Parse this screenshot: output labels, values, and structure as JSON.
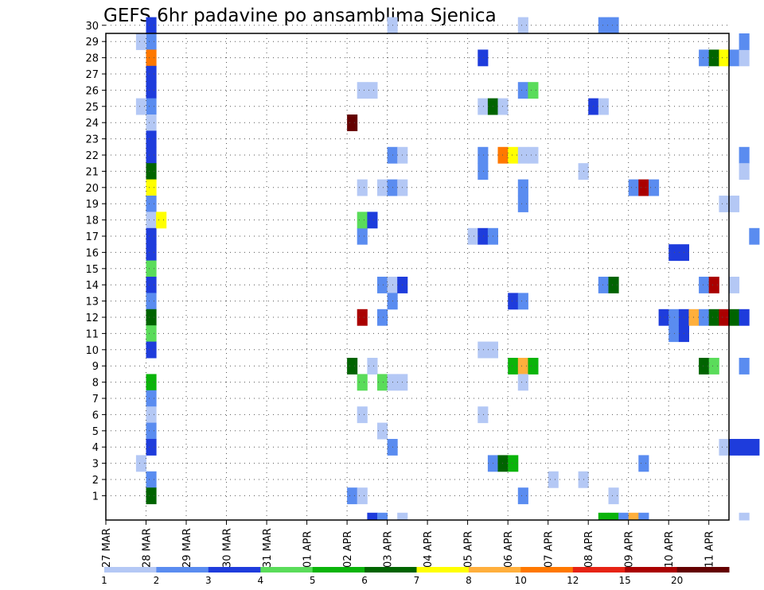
{
  "chart_data": {
    "type": "heatmap",
    "title": "GEFS 6hr padavine po ansamblima Sjenica",
    "xlabel": "",
    "ylabel": "",
    "x_ticks": [
      "27 MAR",
      "28 MAR",
      "29 MAR",
      "30 MAR",
      "31 MAR",
      "01 APR",
      "02 APR",
      "03 APR",
      "04 APR",
      "05 APR",
      "06 APR",
      "07 APR",
      "08 APR",
      "09 APR",
      "10 APR",
      "11 APR"
    ],
    "y_ticks": [
      "1",
      "2",
      "3",
      "4",
      "5",
      "6",
      "7",
      "8",
      "9",
      "10",
      "11",
      "12",
      "13",
      "14",
      "15",
      "16",
      "17",
      "18",
      "19",
      "20",
      "21",
      "22",
      "23",
      "24",
      "25",
      "26",
      "27",
      "28",
      "29",
      "30"
    ],
    "time_steps_per_day": 4,
    "grid": true,
    "legend": {
      "placement": "bottom",
      "thresholds": [
        "1",
        "2",
        "3",
        "4",
        "5",
        "6",
        "7",
        "8",
        "10",
        "12",
        "15",
        "20"
      ],
      "colors": [
        "#b4c8f5",
        "#5a8cf0",
        "#1e3cdc",
        "#5adc5a",
        "#0ab40a",
        "#006400",
        "#ffff00",
        "#ffaf3c",
        "#ff7800",
        "#e62314",
        "#aa0000",
        "#640000"
      ]
    },
    "cells": [
      [
        28.0,
        30,
        3
      ],
      [
        28.0,
        29,
        2
      ],
      [
        28.0,
        28,
        9
      ],
      [
        28.0,
        27,
        3
      ],
      [
        28.0,
        26,
        3
      ],
      [
        28.0,
        25,
        2
      ],
      [
        28.0,
        24,
        1
      ],
      [
        28.0,
        23,
        3
      ],
      [
        28.0,
        22,
        3
      ],
      [
        28.0,
        21,
        6
      ],
      [
        28.0,
        20,
        7
      ],
      [
        28.0,
        19,
        2
      ],
      [
        28.0,
        18,
        1
      ],
      [
        28.0,
        17,
        3
      ],
      [
        28.0,
        16,
        3
      ],
      [
        28.0,
        15,
        4
      ],
      [
        28.0,
        14,
        3
      ],
      [
        28.0,
        13,
        2
      ],
      [
        28.0,
        12,
        6
      ],
      [
        28.0,
        11,
        4
      ],
      [
        28.0,
        10,
        3
      ],
      [
        28.0,
        8,
        5
      ],
      [
        28.0,
        7,
        2
      ],
      [
        28.0,
        6,
        1
      ],
      [
        28.0,
        5,
        2
      ],
      [
        28.0,
        4,
        3
      ],
      [
        28.0,
        2,
        2
      ],
      [
        28.0,
        1,
        6
      ],
      [
        27.75,
        29,
        1
      ],
      [
        27.75,
        25,
        1
      ],
      [
        27.75,
        3,
        1
      ],
      [
        28.25,
        18,
        7
      ],
      [
        33.0,
        1,
        2
      ],
      [
        33.25,
        1,
        1
      ],
      [
        33.0,
        9,
        6
      ],
      [
        33.0,
        24,
        12
      ],
      [
        33.25,
        8,
        4
      ],
      [
        33.25,
        12,
        11
      ],
      [
        33.25,
        17,
        2
      ],
      [
        33.25,
        18,
        4
      ],
      [
        33.25,
        6,
        1
      ],
      [
        33.5,
        18,
        3
      ],
      [
        33.5,
        26,
        1
      ],
      [
        33.25,
        26,
        1
      ],
      [
        33.25,
        20,
        1
      ],
      [
        33.5,
        9,
        1
      ],
      [
        33.75,
        5,
        1
      ],
      [
        33.75,
        14,
        2
      ],
      [
        33.75,
        12,
        2
      ],
      [
        33.75,
        8,
        4
      ],
      [
        33.75,
        20,
        1
      ],
      [
        34.0,
        30,
        1
      ],
      [
        34.0,
        8,
        1
      ],
      [
        34.0,
        14,
        1
      ],
      [
        34.0,
        20,
        2
      ],
      [
        34.0,
        22,
        2
      ],
      [
        34.25,
        22,
        1
      ],
      [
        34.0,
        4,
        2
      ],
      [
        34.0,
        13,
        2
      ],
      [
        34.25,
        8,
        1
      ],
      [
        34.25,
        20,
        1
      ],
      [
        34.25,
        14,
        3
      ],
      [
        36.0,
        17,
        1
      ],
      [
        36.25,
        22,
        2
      ],
      [
        36.25,
        21,
        2
      ],
      [
        36.25,
        28,
        3
      ],
      [
        36.25,
        25,
        1
      ],
      [
        36.25,
        17,
        3
      ],
      [
        36.5,
        17,
        2
      ],
      [
        36.25,
        10,
        1
      ],
      [
        36.5,
        10,
        1
      ],
      [
        36.25,
        6,
        1
      ],
      [
        36.5,
        25,
        6
      ],
      [
        36.75,
        25,
        1
      ],
      [
        36.5,
        3,
        2
      ],
      [
        36.75,
        3,
        6
      ],
      [
        37.0,
        3,
        5
      ],
      [
        36.75,
        22,
        9
      ],
      [
        37.0,
        22,
        7
      ],
      [
        37.25,
        22,
        1
      ],
      [
        37.5,
        22,
        1
      ],
      [
        37.0,
        9,
        5
      ],
      [
        37.25,
        9,
        8
      ],
      [
        37.5,
        9,
        5
      ],
      [
        37.0,
        13,
        3
      ],
      [
        37.25,
        13,
        2
      ],
      [
        37.25,
        26,
        2
      ],
      [
        37.5,
        26,
        4
      ],
      [
        37.25,
        19,
        2
      ],
      [
        37.25,
        20,
        2
      ],
      [
        37.25,
        8,
        1
      ],
      [
        37.25,
        1,
        2
      ],
      [
        37.25,
        30,
        1
      ],
      [
        38.0,
        2,
        1
      ],
      [
        38.75,
        2,
        1
      ],
      [
        38.75,
        21,
        1
      ],
      [
        39.0,
        25,
        3
      ],
      [
        39.25,
        25,
        1
      ],
      [
        39.25,
        14,
        2
      ],
      [
        39.5,
        14,
        6
      ],
      [
        39.25,
        30,
        2
      ],
      [
        39.5,
        30,
        2
      ],
      [
        39.5,
        1,
        1
      ],
      [
        39.5,
        0,
        5
      ],
      [
        40.0,
        20,
        2
      ],
      [
        40.25,
        20,
        11
      ],
      [
        40.5,
        20,
        2
      ],
      [
        40.25,
        3,
        2
      ],
      [
        40.75,
        12,
        3
      ],
      [
        41.0,
        12,
        2
      ],
      [
        41.0,
        11,
        2
      ],
      [
        41.25,
        11,
        3
      ],
      [
        41.25,
        12,
        3
      ],
      [
        41.25,
        16,
        3
      ],
      [
        41.0,
        16,
        3
      ],
      [
        41.5,
        12,
        8
      ],
      [
        41.75,
        12,
        2
      ],
      [
        42.0,
        12,
        6
      ],
      [
        42.25,
        12,
        11
      ],
      [
        42.5,
        12,
        6
      ],
      [
        42.75,
        12,
        3
      ],
      [
        41.75,
        9,
        6
      ],
      [
        42.0,
        9,
        4
      ],
      [
        41.75,
        14,
        2
      ],
      [
        42.0,
        14,
        11
      ],
      [
        42.5,
        14,
        1
      ],
      [
        41.75,
        28,
        2
      ],
      [
        42.0,
        28,
        6
      ],
      [
        42.25,
        28,
        7
      ],
      [
        42.5,
        28,
        2
      ],
      [
        42.75,
        28,
        1
      ],
      [
        42.25,
        4,
        1
      ],
      [
        42.5,
        4,
        3
      ],
      [
        42.75,
        4,
        3
      ],
      [
        43.0,
        4,
        3
      ],
      [
        42.25,
        19,
        1
      ],
      [
        42.5,
        19,
        1
      ],
      [
        42.75,
        22,
        2
      ],
      [
        42.75,
        21,
        1
      ],
      [
        42.75,
        29,
        2
      ],
      [
        42.75,
        9,
        2
      ],
      [
        43.0,
        17,
        2
      ],
      [
        33.5,
        0,
        3
      ],
      [
        33.75,
        0,
        2
      ],
      [
        34.25,
        0,
        1
      ],
      [
        39.25,
        0,
        5
      ],
      [
        39.75,
        0,
        2
      ],
      [
        40.0,
        0,
        8
      ],
      [
        40.25,
        0,
        2
      ],
      [
        42.75,
        0,
        1
      ]
    ]
  }
}
